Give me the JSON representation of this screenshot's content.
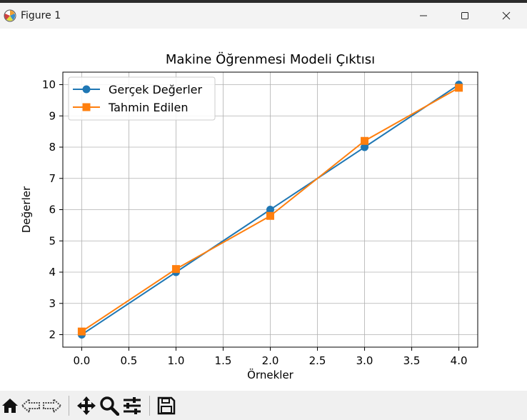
{
  "window": {
    "title": "Figure 1",
    "icon": "matplotlib-logo-icon",
    "controls": [
      "minimize-icon",
      "maximize-icon",
      "close-icon"
    ]
  },
  "toolbar": {
    "buttons": [
      {
        "name": "home-button",
        "icon": "home-icon"
      },
      {
        "name": "back-button",
        "icon": "back-arrow-icon"
      },
      {
        "name": "forward-button",
        "icon": "forward-arrow-icon"
      },
      {
        "name": "pan-button",
        "icon": "move-icon"
      },
      {
        "name": "zoom-button",
        "icon": "zoom-icon"
      },
      {
        "name": "configure-subplots-button",
        "icon": "sliders-icon"
      },
      {
        "name": "save-button",
        "icon": "floppy-disk-icon"
      }
    ]
  },
  "chart_data": {
    "type": "line",
    "title": "Makine Öğrenmesi Modeli Çıktısı",
    "xlabel": "Örnekler",
    "ylabel": "Değerler",
    "x": [
      0,
      1,
      2,
      3,
      4
    ],
    "xlim": [
      -0.2,
      4.2
    ],
    "ylim": [
      1.6,
      10.4
    ],
    "xticks": [
      "0.0",
      "0.5",
      "1.0",
      "1.5",
      "2.0",
      "2.5",
      "3.0",
      "3.5",
      "4.0"
    ],
    "yticks": [
      "2",
      "3",
      "4",
      "5",
      "6",
      "7",
      "8",
      "9",
      "10"
    ],
    "grid": true,
    "legend": "upper-left",
    "series": [
      {
        "name": "Gerçek Değerler",
        "values": [
          2,
          4,
          6,
          8,
          10
        ],
        "color": "#1f77b4",
        "marker": "circle"
      },
      {
        "name": "Tahmin Edilen",
        "values": [
          2.1,
          4.1,
          5.8,
          8.2,
          9.9
        ],
        "color": "#ff7f0e",
        "marker": "square"
      }
    ]
  }
}
